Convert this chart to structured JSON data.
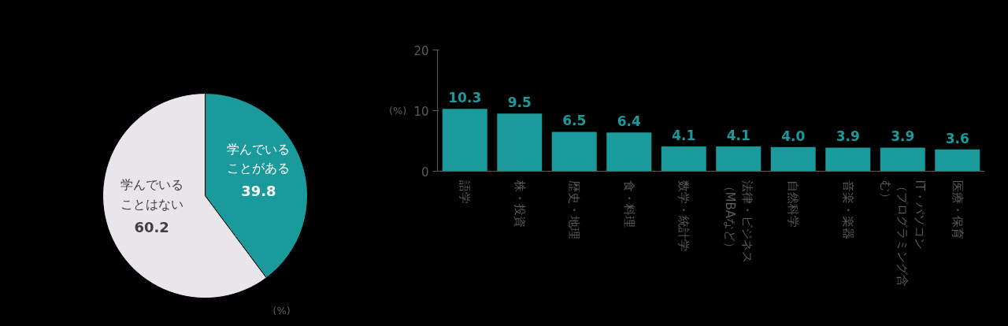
{
  "chart_data": [
    {
      "type": "pie",
      "categories": [
        "学んでいることがある",
        "学んでいることはない"
      ],
      "values": [
        39.8,
        60.2
      ],
      "colors": [
        "#1a9a9a",
        "#e8e6ea"
      ],
      "data_labels": true,
      "annotations": [
        "(%)"
      ]
    },
    {
      "type": "bar",
      "categories": [
        "語学",
        "株・投資",
        "歴史・地理",
        "食・料理",
        "数学・統計学",
        "法律・ビジネス（MBAなど）",
        "自然科学",
        "音楽・楽器",
        "IT・パソコン（プログラミング含む）",
        "医療・保育"
      ],
      "values": [
        10.3,
        9.5,
        6.5,
        6.4,
        4.1,
        4.1,
        4.0,
        3.9,
        3.9,
        3.6
      ],
      "value_labels": [
        "10.3",
        "9.5",
        "6.5",
        "6.4",
        "4.1",
        "4.1",
        "4.0",
        "3.9",
        "3.9",
        "3.6"
      ],
      "color": "#1a9a9a",
      "ylim": [
        0,
        20
      ],
      "yticks": [
        0,
        10,
        20
      ],
      "grid": false,
      "annotations": [
        "(%)"
      ]
    }
  ]
}
